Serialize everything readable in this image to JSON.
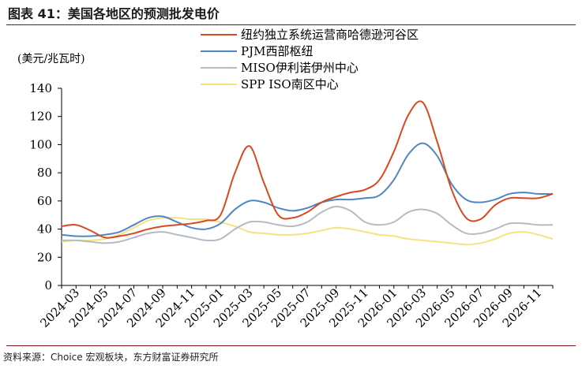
{
  "header": {
    "title": "图表 41：美国各地区的预测批发电价"
  },
  "footer": {
    "source": "资料来源：Choice 宏观板块，东方财富证券研究所"
  },
  "chart_data": {
    "type": "line",
    "title": "",
    "xlabel": "",
    "ylabel": "(美元/兆瓦时)",
    "ylim": [
      0,
      140
    ],
    "yticks": [
      0,
      20,
      40,
      60,
      80,
      100,
      120,
      140
    ],
    "x_tick_labels": [
      "2024-03",
      "2024-05",
      "2024-07",
      "2024-09",
      "2024-11",
      "2025-01",
      "2025-03",
      "2025-05",
      "2025-07",
      "2025-09",
      "2025-11",
      "2026-01",
      "2026-03",
      "2026-05",
      "2026-07",
      "2026-09",
      "2026-11"
    ],
    "x": [
      "2024-02",
      "2024-03",
      "2024-04",
      "2024-05",
      "2024-06",
      "2024-07",
      "2024-08",
      "2024-09",
      "2024-10",
      "2024-11",
      "2024-12",
      "2025-01",
      "2025-02",
      "2025-03",
      "2025-04",
      "2025-05",
      "2025-06",
      "2025-07",
      "2025-08",
      "2025-09",
      "2025-10",
      "2025-11",
      "2025-12",
      "2026-01",
      "2026-02",
      "2026-03",
      "2026-04",
      "2026-05",
      "2026-06",
      "2026-07",
      "2026-08",
      "2026-09",
      "2026-10",
      "2026-11",
      "2026-12"
    ],
    "grid": false,
    "legend_position": "top-right",
    "series": [
      {
        "name": "纽约独立系统运营商哈德逊河谷区",
        "color": "#d9481f",
        "values": [
          42,
          43,
          39,
          34,
          35,
          37,
          40,
          42,
          43,
          44,
          46,
          50,
          80,
          99,
          73,
          50,
          48,
          52,
          59,
          63,
          66,
          68,
          75,
          95,
          121,
          130,
          102,
          68,
          48,
          47,
          57,
          62,
          62,
          62,
          65
        ]
      },
      {
        "name": "PJM西部枢纽",
        "color": "#4f86c6",
        "values": [
          36,
          35,
          35,
          36,
          38,
          43,
          48,
          49,
          45,
          41,
          40,
          44,
          54,
          60,
          59,
          55,
          53,
          55,
          59,
          61,
          61,
          62,
          64,
          75,
          93,
          101,
          92,
          72,
          61,
          59,
          61,
          65,
          66,
          65,
          65
        ]
      },
      {
        "name": "MISO伊利诺伊州中心",
        "color": "#b3bcc6",
        "values": [
          32,
          32,
          31,
          30,
          31,
          34,
          37,
          38,
          36,
          34,
          32,
          33,
          40,
          45,
          45,
          43,
          42,
          45,
          52,
          56,
          53,
          45,
          43,
          45,
          52,
          54,
          51,
          43,
          37,
          37,
          40,
          44,
          44,
          43,
          43
        ]
      },
      {
        "name": "SPP ISO南区中心",
        "color": "#f7e27f",
        "values": [
          31,
          32,
          32,
          33,
          36,
          41,
          46,
          48,
          48,
          47,
          47,
          45,
          42,
          38,
          37,
          36,
          36,
          37,
          39,
          41,
          40,
          38,
          36,
          35,
          33,
          32,
          31,
          30,
          29,
          30,
          33,
          37,
          38,
          36,
          33
        ]
      }
    ]
  }
}
